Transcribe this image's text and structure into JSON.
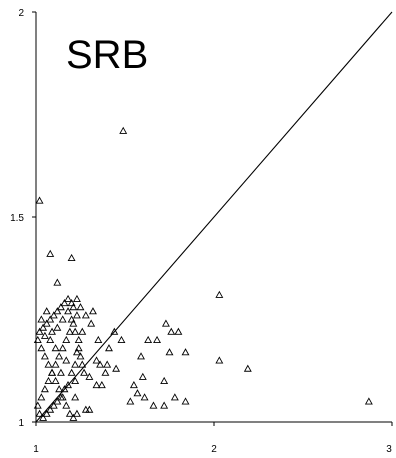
{
  "chart_data": {
    "type": "scatter",
    "title": "",
    "panel_label": "SRB",
    "xlabel": "",
    "ylabel": "",
    "xlim": [
      1,
      3
    ],
    "ylim": [
      1,
      2
    ],
    "x_ticks": [
      1,
      2,
      3
    ],
    "y_ticks": [
      1,
      1.5,
      2
    ],
    "x_tick_labels": [
      "1",
      "2",
      "3"
    ],
    "y_tick_labels": [
      "1",
      "1.5",
      "2"
    ],
    "grid": false,
    "legend": "none",
    "marker": "triangle-open",
    "reference_line": {
      "from": [
        1,
        1
      ],
      "to": [
        3,
        2
      ]
    },
    "series": [
      {
        "points": [
          [
            1.02,
            1.54
          ],
          [
            1.08,
            1.41
          ],
          [
            1.12,
            1.34
          ],
          [
            1.2,
            1.4
          ],
          [
            1.49,
            1.71
          ],
          [
            2.03,
            1.31
          ],
          [
            2.19,
            1.13
          ],
          [
            2.87,
            1.05
          ],
          [
            2.03,
            1.15
          ],
          [
            1.84,
            1.17
          ],
          [
            1.73,
            1.24
          ],
          [
            1.76,
            1.22
          ],
          [
            1.8,
            1.22
          ],
          [
            1.68,
            1.2
          ],
          [
            1.75,
            1.17
          ],
          [
            1.63,
            1.2
          ],
          [
            1.59,
            1.16
          ],
          [
            1.48,
            1.2
          ],
          [
            1.44,
            1.22
          ],
          [
            1.41,
            1.18
          ],
          [
            1.39,
            1.12
          ],
          [
            1.36,
            1.14
          ],
          [
            1.34,
            1.09
          ],
          [
            1.37,
            1.09
          ],
          [
            1.3,
            1.11
          ],
          [
            1.27,
            1.12
          ],
          [
            1.25,
            1.16
          ],
          [
            1.22,
            1.1
          ],
          [
            1.22,
            1.06
          ],
          [
            1.21,
            1.01
          ],
          [
            1.23,
            1.02
          ],
          [
            1.28,
            1.03
          ],
          [
            1.3,
            1.03
          ],
          [
            1.32,
            1.27
          ],
          [
            1.31,
            1.24
          ],
          [
            1.28,
            1.26
          ],
          [
            1.26,
            1.22
          ],
          [
            1.24,
            1.2
          ],
          [
            1.23,
            1.17
          ],
          [
            1.22,
            1.14
          ],
          [
            1.2,
            1.12
          ],
          [
            1.18,
            1.09
          ],
          [
            1.16,
            1.08
          ],
          [
            1.14,
            1.06
          ],
          [
            1.12,
            1.05
          ],
          [
            1.1,
            1.04
          ],
          [
            1.08,
            1.03
          ],
          [
            1.06,
            1.02
          ],
          [
            1.04,
            1.01
          ],
          [
            1.02,
            1.02
          ],
          [
            1.01,
            1.04
          ],
          [
            1.03,
            1.06
          ],
          [
            1.05,
            1.08
          ],
          [
            1.07,
            1.1
          ],
          [
            1.09,
            1.12
          ],
          [
            1.11,
            1.14
          ],
          [
            1.13,
            1.16
          ],
          [
            1.15,
            1.18
          ],
          [
            1.17,
            1.2
          ],
          [
            1.19,
            1.22
          ],
          [
            1.21,
            1.24
          ],
          [
            1.23,
            1.26
          ],
          [
            1.25,
            1.28
          ],
          [
            1.2,
            1.29
          ],
          [
            1.18,
            1.3
          ],
          [
            1.16,
            1.29
          ],
          [
            1.14,
            1.28
          ],
          [
            1.12,
            1.27
          ],
          [
            1.1,
            1.26
          ],
          [
            1.08,
            1.25
          ],
          [
            1.06,
            1.24
          ],
          [
            1.04,
            1.23
          ],
          [
            1.02,
            1.22
          ],
          [
            1.01,
            1.2
          ],
          [
            1.03,
            1.18
          ],
          [
            1.05,
            1.16
          ],
          [
            1.07,
            1.14
          ],
          [
            1.09,
            1.12
          ],
          [
            1.11,
            1.1
          ],
          [
            1.13,
            1.08
          ],
          [
            1.15,
            1.06
          ],
          [
            1.17,
            1.04
          ],
          [
            1.19,
            1.02
          ],
          [
            1.12,
            1.23
          ],
          [
            1.15,
            1.25
          ],
          [
            1.18,
            1.27
          ],
          [
            1.21,
            1.28
          ],
          [
            1.23,
            1.3
          ],
          [
            1.2,
            1.25
          ],
          [
            1.22,
            1.22
          ],
          [
            1.24,
            1.18
          ],
          [
            1.26,
            1.14
          ],
          [
            1.17,
            1.15
          ],
          [
            1.14,
            1.12
          ],
          [
            1.11,
            1.18
          ],
          [
            1.08,
            1.2
          ],
          [
            1.05,
            1.21
          ],
          [
            1.03,
            1.25
          ],
          [
            1.06,
            1.27
          ],
          [
            1.09,
            1.22
          ],
          [
            1.53,
            1.05
          ],
          [
            1.57,
            1.07
          ],
          [
            1.61,
            1.06
          ],
          [
            1.66,
            1.04
          ],
          [
            1.72,
            1.04
          ],
          [
            1.78,
            1.06
          ],
          [
            1.84,
            1.05
          ],
          [
            1.72,
            1.1
          ],
          [
            1.6,
            1.11
          ],
          [
            1.55,
            1.09
          ],
          [
            1.45,
            1.13
          ],
          [
            1.4,
            1.14
          ],
          [
            1.34,
            1.15
          ],
          [
            1.35,
            1.2
          ]
        ]
      }
    ]
  }
}
